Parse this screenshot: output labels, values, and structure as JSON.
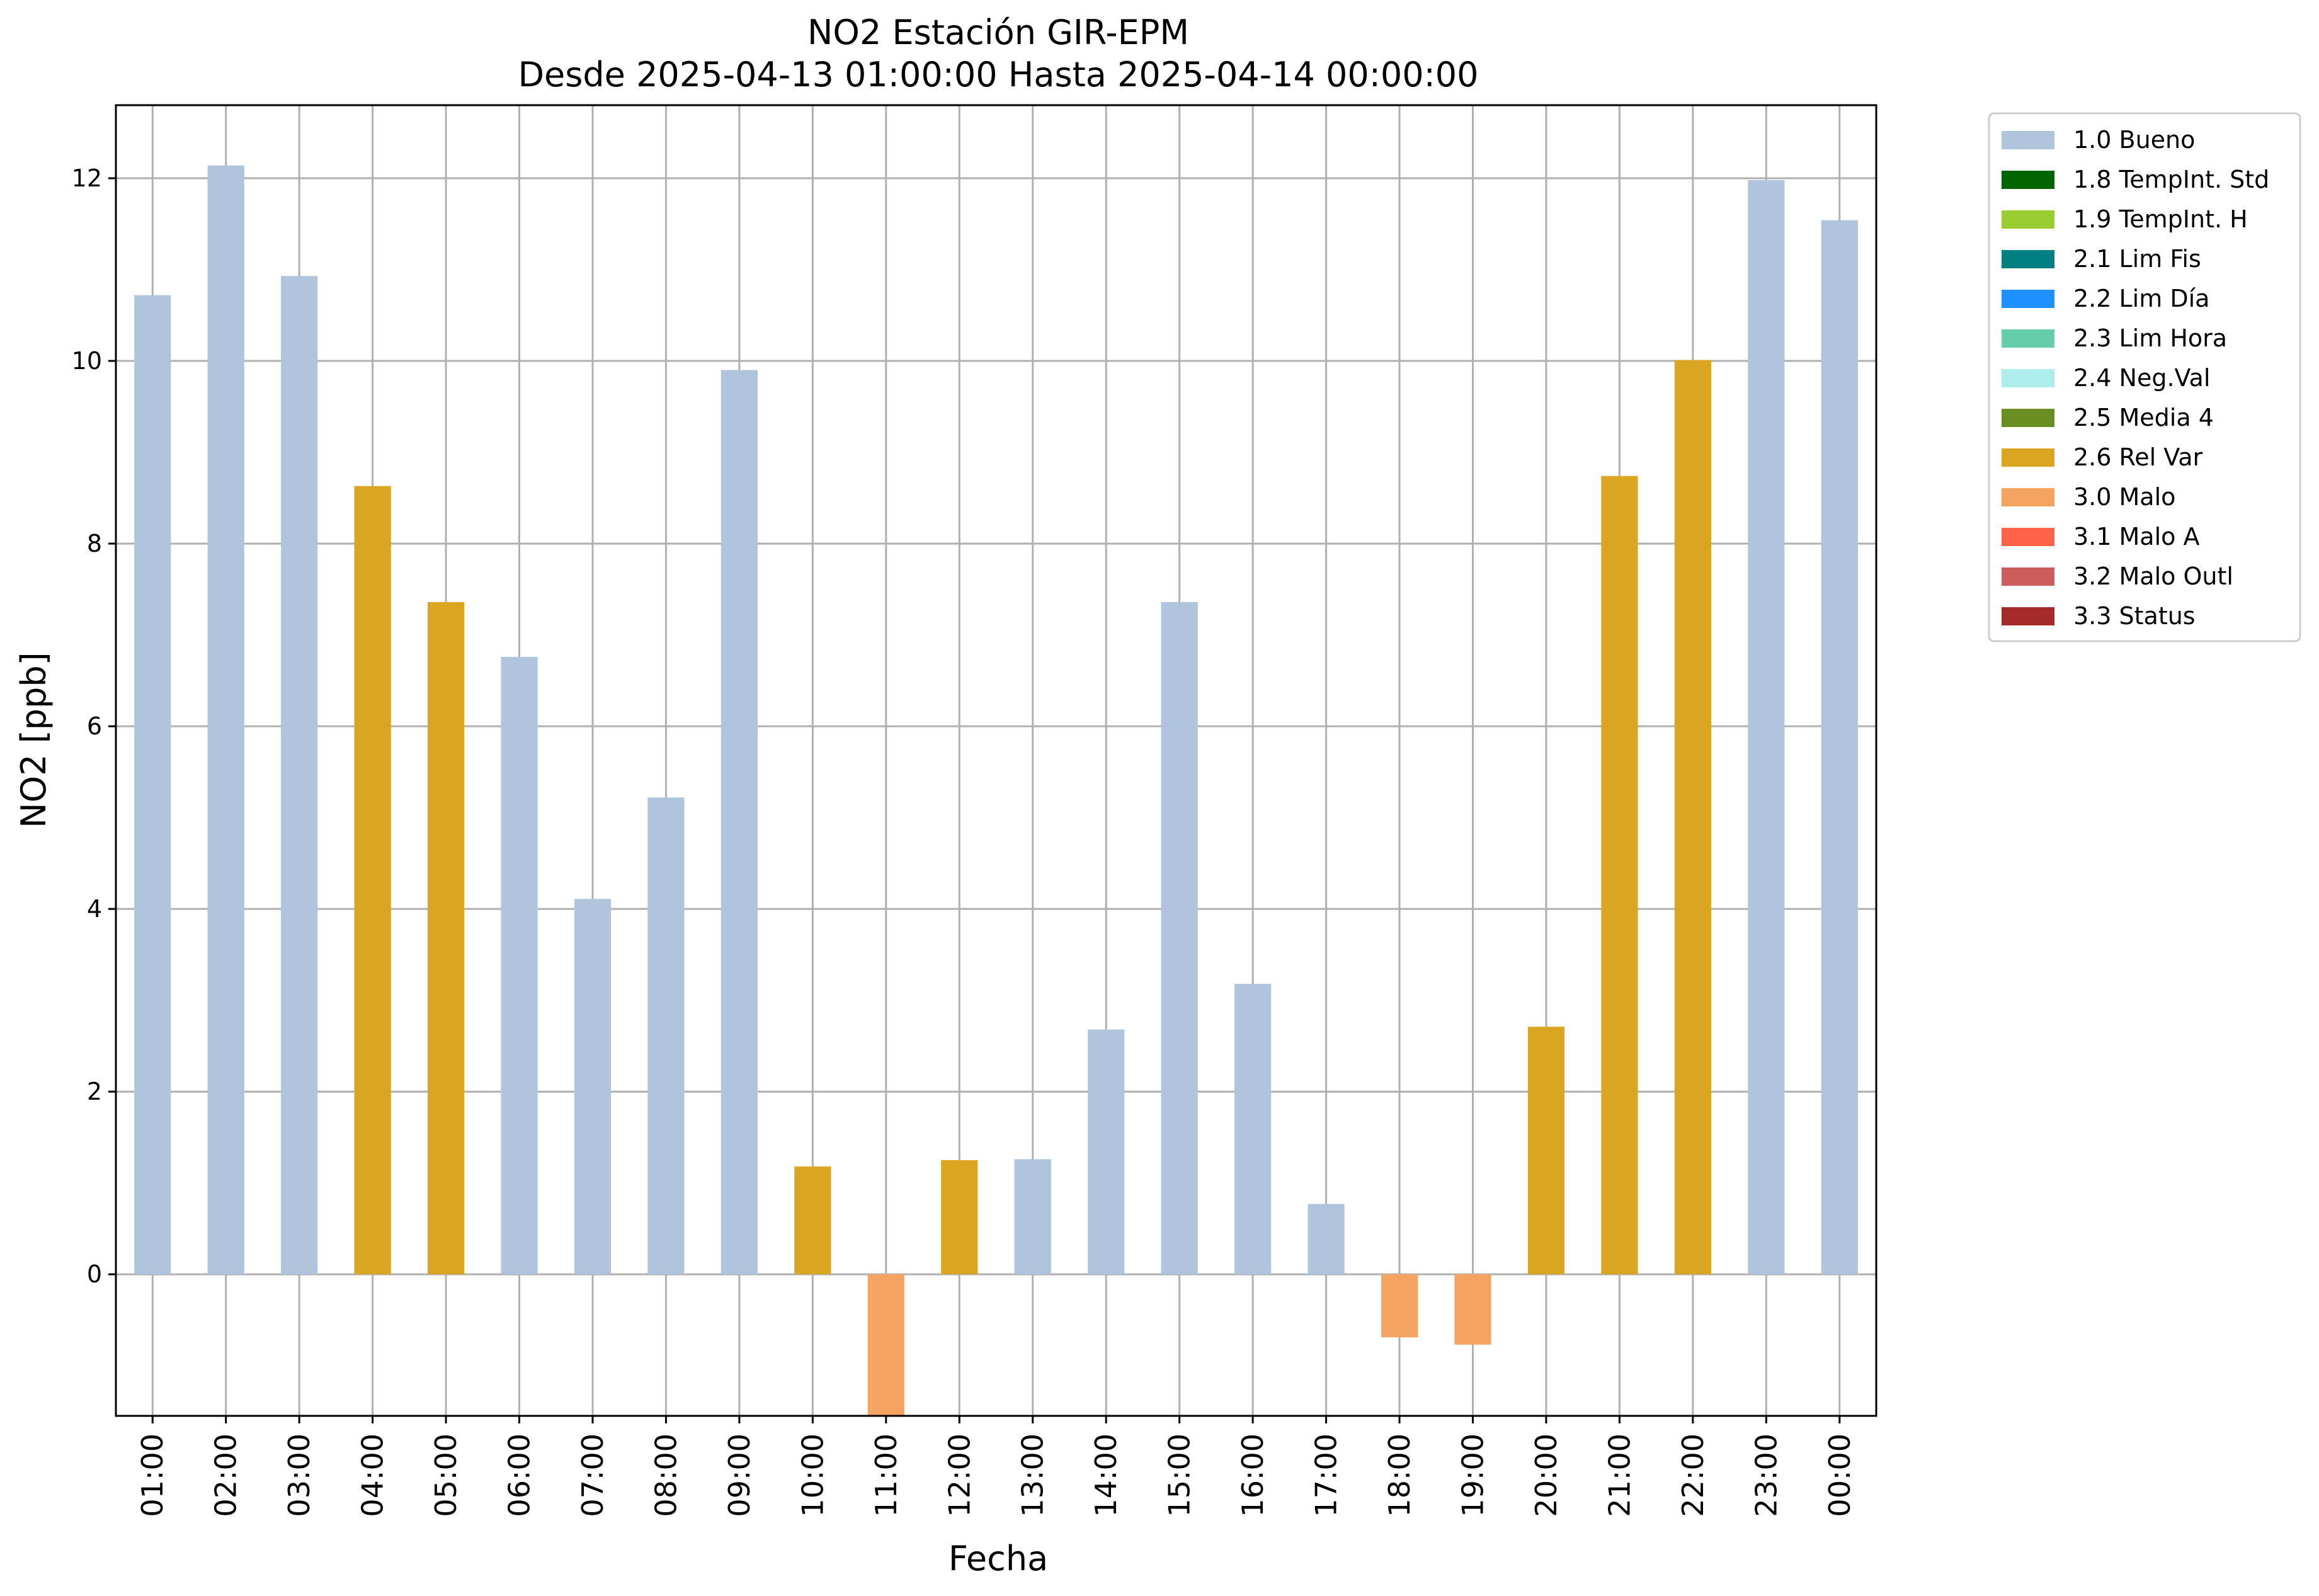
{
  "chart_data": {
    "type": "bar",
    "title": "NO2 Estación GIR-EPM",
    "subtitle": "Desde 2025-04-13 01:00:00 Hasta 2025-04-14 00:00:00",
    "xlabel": "Fecha",
    "ylabel": "NO2 [ppb]",
    "ylim": [
      -1.55,
      12.8
    ],
    "yticks": [
      0,
      2,
      4,
      6,
      8,
      10,
      12
    ],
    "grid": true,
    "legend_position": "outside-top-right",
    "categories": [
      "01:00",
      "02:00",
      "03:00",
      "04:00",
      "05:00",
      "06:00",
      "07:00",
      "08:00",
      "09:00",
      "10:00",
      "11:00",
      "12:00",
      "13:00",
      "14:00",
      "15:00",
      "16:00",
      "17:00",
      "18:00",
      "19:00",
      "20:00",
      "21:00",
      "22:00",
      "23:00",
      "00:00"
    ],
    "values": [
      10.72,
      12.14,
      10.93,
      8.63,
      7.36,
      6.76,
      4.11,
      5.22,
      9.9,
      1.18,
      -1.55,
      1.25,
      1.26,
      2.68,
      7.36,
      3.18,
      0.77,
      -0.69,
      -0.77,
      2.71,
      8.74,
      10.01,
      11.98,
      11.54
    ],
    "flags": [
      "1.0 Bueno",
      "1.0 Bueno",
      "1.0 Bueno",
      "2.6 Rel Var",
      "2.6 Rel Var",
      "1.0 Bueno",
      "1.0 Bueno",
      "1.0 Bueno",
      "1.0 Bueno",
      "2.6 Rel Var",
      "3.0 Malo",
      "2.6 Rel Var",
      "1.0 Bueno",
      "1.0 Bueno",
      "1.0 Bueno",
      "1.0 Bueno",
      "1.0 Bueno",
      "3.0 Malo",
      "3.0 Malo",
      "2.6 Rel Var",
      "2.6 Rel Var",
      "2.6 Rel Var",
      "1.0 Bueno",
      "1.0 Bueno"
    ],
    "legend": [
      {
        "label": "1.0 Bueno",
        "color": "#b0c4de"
      },
      {
        "label": "1.8 TempInt. Std",
        "color": "#006400"
      },
      {
        "label": "1.9 TempInt. H",
        "color": "#9acd32"
      },
      {
        "label": "2.1 Lim Fis",
        "color": "#008080"
      },
      {
        "label": "2.2 Lim Día",
        "color": "#1e90ff"
      },
      {
        "label": "2.3 Lim Hora",
        "color": "#66cdaa"
      },
      {
        "label": "2.4 Neg.Val",
        "color": "#afeeee"
      },
      {
        "label": "2.5 Media 4",
        "color": "#6b8e23"
      },
      {
        "label": "2.6 Rel Var",
        "color": "#daa520"
      },
      {
        "label": "3.0 Malo",
        "color": "#f4a460"
      },
      {
        "label": "3.1 Malo A",
        "color": "#ff6347"
      },
      {
        "label": "3.2 Malo Outl",
        "color": "#cd5c5c"
      },
      {
        "label": "3.3 Status",
        "color": "#a52a2a"
      }
    ]
  }
}
